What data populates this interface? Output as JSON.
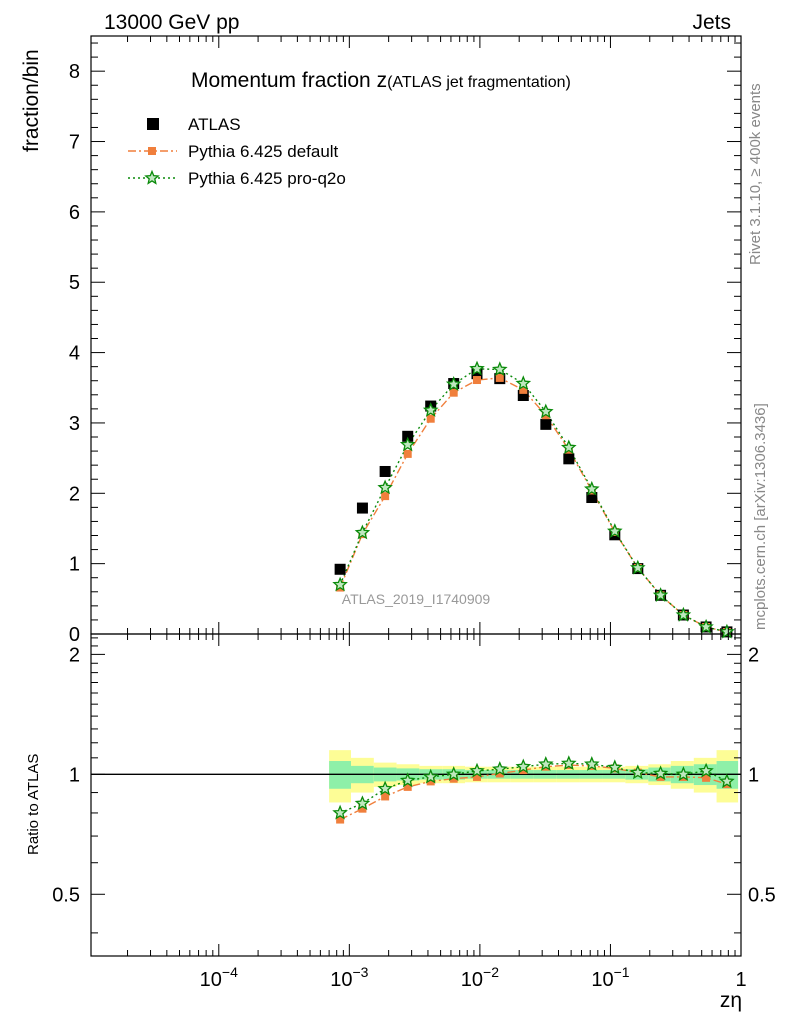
{
  "header": {
    "left": "13000 GeV pp",
    "right": "Jets"
  },
  "side_labels": {
    "rivet": "Rivet 3.1.10, ≥ 400k events",
    "mcplots": "mcplots.cern.ch [arXiv:1306.3436]"
  },
  "colors": {
    "data": "#000000",
    "default": "#f07f3c",
    "proq2o": "#0a8a0a",
    "band_inner": "#8ef0a8",
    "band_outer": "#fdfd96"
  },
  "chart_data": {
    "type": "scatter",
    "title_main": "Momentum fraction z",
    "title_paren": "(ATLAS jet fragmentation)",
    "analysis_id": "ATLAS_2019_I1740909",
    "ylabel": "fraction/bin",
    "ratio_ylabel": "Ratio to ATLAS",
    "xlabel": "zη",
    "xscale": "log",
    "xlim": [
      1.05e-05,
      1.0
    ],
    "ylim": [
      0,
      8.5
    ],
    "ratio_ylim": [
      0.35,
      2.25
    ],
    "x_ticks": [
      {
        "value": 0.0001,
        "label": "10",
        "exp": "−4"
      },
      {
        "value": 0.001,
        "label": "10",
        "exp": "−3"
      },
      {
        "value": 0.01,
        "label": "10",
        "exp": "−2"
      },
      {
        "value": 0.1,
        "label": "10",
        "exp": "−1"
      },
      {
        "value": 1,
        "label": "1",
        "exp": ""
      }
    ],
    "y_ticks": [
      0,
      1,
      2,
      3,
      4,
      5,
      6,
      7,
      8
    ],
    "ratio_ticks": [
      0.5,
      1,
      2
    ],
    "x": [
      0.00085,
      0.00126,
      0.00188,
      0.0028,
      0.0042,
      0.0063,
      0.0095,
      0.0142,
      0.0215,
      0.032,
      0.048,
      0.072,
      0.108,
      0.162,
      0.242,
      0.362,
      0.54,
      0.78
    ],
    "x_edges": [
      0.0007,
      0.00103,
      0.00154,
      0.0023,
      0.00344,
      0.00515,
      0.0077,
      0.0115,
      0.0172,
      0.0257,
      0.0385,
      0.058,
      0.087,
      0.13,
      0.195,
      0.29,
      0.435,
      0.65,
      0.95
    ],
    "series": [
      {
        "name": "ATLAS",
        "key": "data",
        "marker": "square",
        "values": [
          0.92,
          1.79,
          2.31,
          2.81,
          3.24,
          3.56,
          3.7,
          3.63,
          3.39,
          2.98,
          2.49,
          1.94,
          1.41,
          0.93,
          0.55,
          0.27,
          0.1,
          0.03
        ]
      },
      {
        "name": "Pythia 6.425 default",
        "key": "default",
        "marker": "filled-square",
        "values": [
          0.66,
          1.42,
          1.96,
          2.56,
          3.06,
          3.43,
          3.61,
          3.64,
          3.47,
          3.11,
          2.62,
          2.04,
          1.45,
          0.94,
          0.55,
          0.27,
          0.1,
          0.028
        ]
      },
      {
        "name": "Pythia 6.425 pro-q2o",
        "key": "proq2o",
        "marker": "star",
        "values": [
          0.7,
          1.44,
          2.08,
          2.69,
          3.18,
          3.55,
          3.77,
          3.76,
          3.56,
          3.16,
          2.65,
          2.06,
          1.46,
          0.94,
          0.55,
          0.27,
          0.1,
          0.03
        ]
      }
    ],
    "ratio_series": [
      {
        "key": "default",
        "values": [
          0.77,
          0.82,
          0.88,
          0.93,
          0.96,
          0.975,
          0.985,
          1.005,
          1.025,
          1.045,
          1.055,
          1.05,
          1.035,
          1.01,
          0.985,
          0.985,
          0.98,
          0.945
        ]
      },
      {
        "key": "proq2o",
        "values": [
          0.8,
          0.845,
          0.92,
          0.965,
          0.985,
          1.0,
          1.02,
          1.03,
          1.045,
          1.06,
          1.065,
          1.06,
          1.04,
          1.01,
          1.005,
          1.0,
          1.02,
          0.96
        ]
      }
    ],
    "uncertainty_inner": [
      0.08,
      0.05,
      0.04,
      0.035,
      0.03,
      0.03,
      0.025,
      0.025,
      0.025,
      0.025,
      0.025,
      0.025,
      0.025,
      0.03,
      0.04,
      0.05,
      0.06,
      0.08
    ],
    "uncertainty_outer": [
      0.15,
      0.1,
      0.07,
      0.06,
      0.05,
      0.05,
      0.045,
      0.045,
      0.045,
      0.045,
      0.045,
      0.045,
      0.045,
      0.05,
      0.06,
      0.08,
      0.1,
      0.15
    ]
  }
}
